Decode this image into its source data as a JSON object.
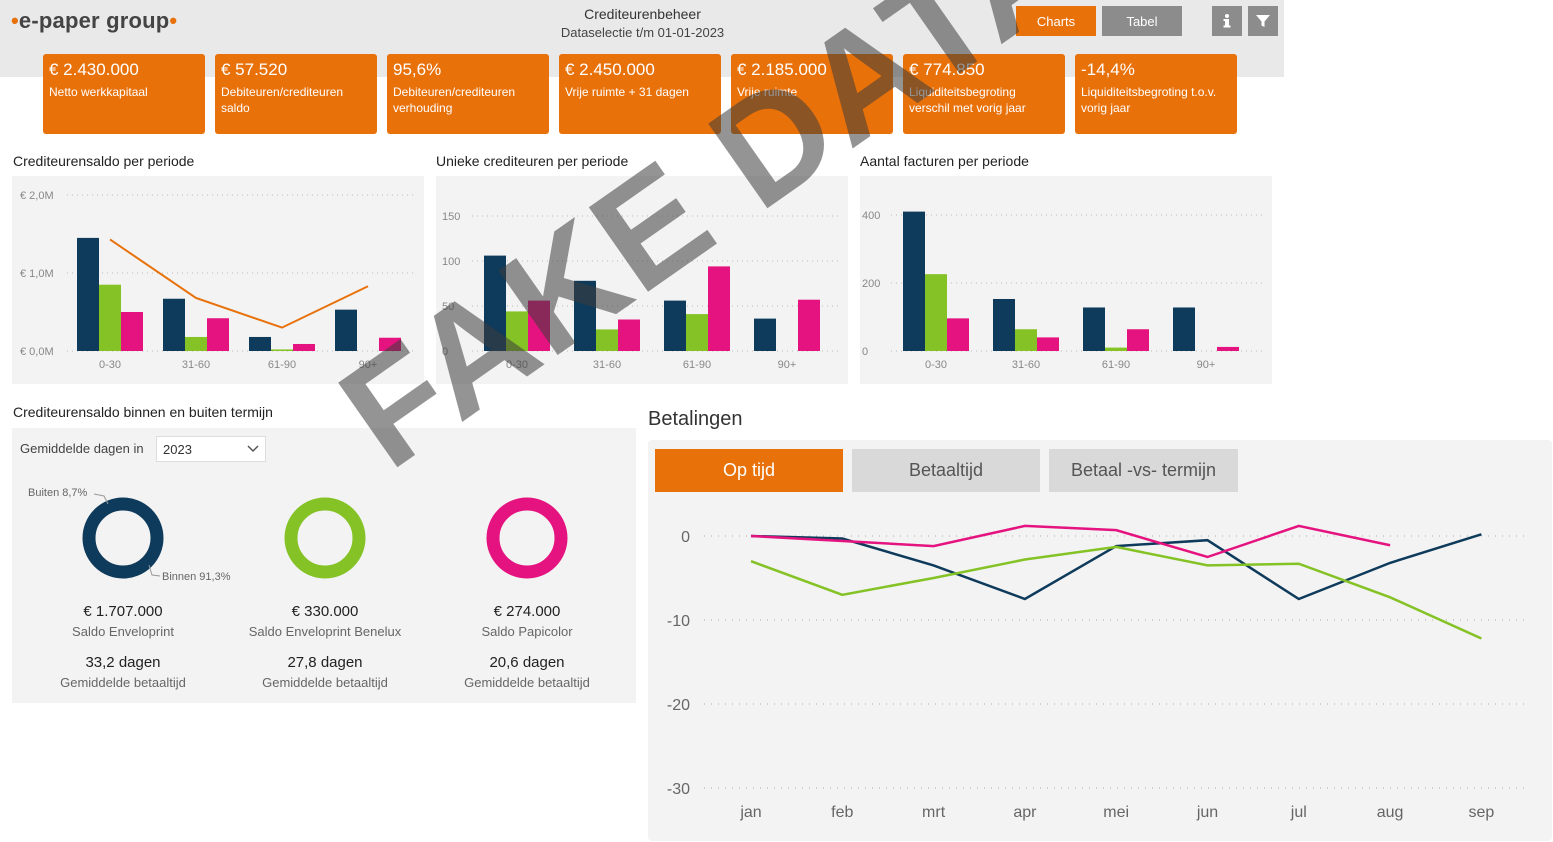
{
  "header": {
    "logo": "•e-paper group•",
    "title": "Crediteurenbeheer",
    "subtitle": "Dataselectie t/m 01-01-2023",
    "charts_label": "Charts",
    "tabel_label": "Tabel",
    "info_icon": "info-icon",
    "filter_icon": "filter-icon"
  },
  "kpis": [
    {
      "value": "€ 2.430.000",
      "label": "Netto werkkapitaal"
    },
    {
      "value": "€ 57.520",
      "label": "Debiteuren/crediteuren saldo"
    },
    {
      "value": "95,6%",
      "label": "Debiteuren/crediteuren verhouding"
    },
    {
      "value": "€ 2.450.000",
      "label": "Vrije ruimte + 31 dagen"
    },
    {
      "value": "€ 2.185.000",
      "label": "Vrije ruimte"
    },
    {
      "value": "€ 774.850",
      "label": "Liquiditeitsbegroting verschil met vorig jaar"
    },
    {
      "value": "-14,4%",
      "label": "Liquiditeitsbegroting t.o.v. vorig jaar"
    }
  ],
  "colors": {
    "navy": "#0e3a5b",
    "green": "#84c225",
    "pink": "#e5137f",
    "orange": "#e8710a"
  },
  "chart_data": [
    {
      "type": "bar",
      "title": "Crediteurensaldo per periode",
      "categories": [
        "0-30",
        "31-60",
        "61-90",
        "90+"
      ],
      "yticks": [
        "€ 0,0M",
        "€ 1,0M",
        "€ 2,0M"
      ],
      "ylim": [
        0,
        2.0
      ],
      "series": [
        {
          "values": [
            1.45,
            0.67,
            0.18,
            0.53
          ]
        },
        {
          "values": [
            0.85,
            0.18,
            0.02,
            0.0
          ]
        },
        {
          "values": [
            0.5,
            0.42,
            0.09,
            0.17
          ]
        }
      ],
      "line": {
        "values": [
          1.43,
          0.68,
          0.3,
          0.83
        ]
      }
    },
    {
      "type": "bar",
      "title": "Unieke crediteuren per periode",
      "categories": [
        "0-30",
        "31-60",
        "61-90",
        "90+"
      ],
      "yticks": [
        "0",
        "50",
        "100",
        "150"
      ],
      "ylim": [
        0,
        150
      ],
      "series": [
        {
          "values": [
            106,
            78,
            56,
            36
          ]
        },
        {
          "values": [
            44,
            24,
            41,
            0
          ]
        },
        {
          "values": [
            56,
            35,
            94,
            57
          ]
        }
      ]
    },
    {
      "type": "bar",
      "title": "Aantal facturen per periode",
      "categories": [
        "0-30",
        "31-60",
        "61-90",
        "90+"
      ],
      "yticks": [
        "0",
        "200",
        "400"
      ],
      "ylim": [
        0,
        400
      ],
      "series": [
        {
          "values": [
            410,
            153,
            128,
            128
          ]
        },
        {
          "values": [
            226,
            64,
            10,
            0
          ]
        },
        {
          "values": [
            96,
            40,
            64,
            12
          ]
        }
      ]
    },
    {
      "type": "line",
      "title": "Betalingen",
      "x": [
        "jan",
        "feb",
        "mrt",
        "apr",
        "mei",
        "jun",
        "jul",
        "aug",
        "sep"
      ],
      "yticks": [
        "0",
        "-10",
        "-20",
        "-30"
      ],
      "ylim": [
        -30,
        0
      ],
      "series": [
        {
          "values": [
            0,
            -0.3,
            -3.5,
            -7.5,
            -1.2,
            -0.5,
            -7.5,
            -3.2,
            0.2
          ]
        },
        {
          "values": [
            -3,
            -7,
            -5,
            -2.8,
            -1.3,
            -3.5,
            -3.3,
            -7.3,
            -12.2
          ]
        },
        {
          "values": [
            0,
            -0.6,
            -1.2,
            1.2,
            0.7,
            -2.5,
            1.2,
            -1.1,
            null
          ]
        }
      ]
    }
  ],
  "donuts": {
    "title": "Crediteurensaldo binnen en buiten termijn",
    "filter_label": "Gemiddelde dagen in",
    "year": "2023",
    "buiten_label": "Buiten 8,7%",
    "binnen_label": "Binnen 91,3%",
    "items": [
      {
        "saldo": "€ 1.707.000",
        "name": "Saldo Enveloprint",
        "days": "33,2 dagen",
        "days_label": "Gemiddelde betaaltijd"
      },
      {
        "saldo": "€ 330.000",
        "name": "Saldo Enveloprint Benelux",
        "days": "27,8 dagen",
        "days_label": "Gemiddelde betaaltijd"
      },
      {
        "saldo": "€ 274.000",
        "name": "Saldo Papicolor",
        "days": "20,6 dagen",
        "days_label": "Gemiddelde betaaltijd"
      }
    ]
  },
  "betalingen": {
    "title": "Betalingen",
    "tabs": [
      "Op tijd",
      "Betaaltijd",
      "Betaal -vs- termijn"
    ]
  },
  "watermark": "FAKE DATA"
}
